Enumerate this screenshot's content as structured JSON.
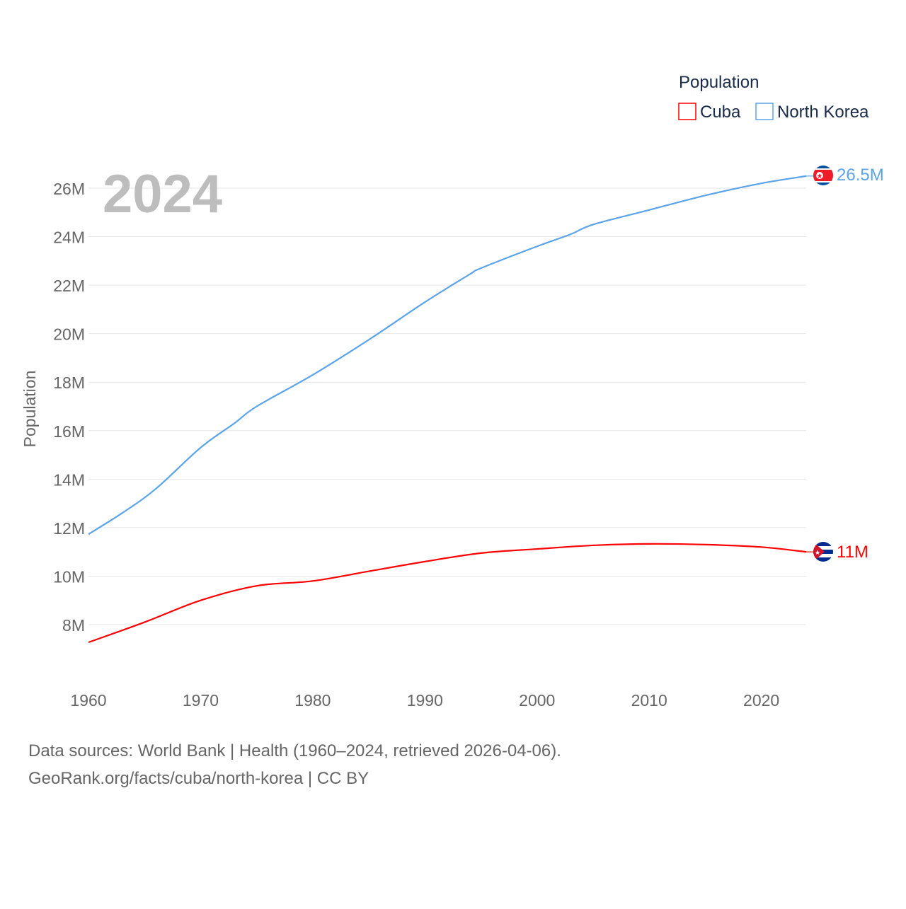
{
  "chart_data": {
    "type": "line",
    "year_label": "2024",
    "ylabel": "Population",
    "xlabel": "",
    "ylim": [
      6.5,
      27
    ],
    "xlim": [
      1960,
      2024
    ],
    "y_ticks": [
      8,
      10,
      12,
      14,
      16,
      18,
      20,
      22,
      24,
      26
    ],
    "y_tick_labels": [
      "8M",
      "10M",
      "12M",
      "14M",
      "16M",
      "18M",
      "20M",
      "22M",
      "24M",
      "26M"
    ],
    "x_ticks": [
      1960,
      1970,
      1980,
      1990,
      2000,
      2010,
      2020
    ],
    "x_tick_labels": [
      "1960",
      "1970",
      "1980",
      "1990",
      "2000",
      "2010",
      "2020"
    ],
    "grid": true,
    "legend": {
      "title": "Population",
      "placement": "top-right"
    },
    "series": [
      {
        "name": "Cuba",
        "color": "#ff0000",
        "end_label": "11M",
        "flag": "cuba-flag",
        "x": [
          1960,
          1965,
          1970,
          1975,
          1980,
          1985,
          1990,
          1995,
          2000,
          2005,
          2010,
          2015,
          2020,
          2024
        ],
        "values": [
          7.27,
          8.1,
          9.0,
          9.6,
          9.8,
          10.2,
          10.6,
          10.95,
          11.12,
          11.27,
          11.33,
          11.3,
          11.2,
          11.0
        ]
      },
      {
        "name": "North Korea",
        "color": "#5ba4ea",
        "end_label": "26.5M",
        "flag": "north-korea-flag",
        "x": [
          1960,
          1963,
          1966,
          1970,
          1973,
          1975,
          1980,
          1985,
          1990,
          1994,
          1995,
          2000,
          2003,
          2005,
          2010,
          2015,
          2020,
          2024
        ],
        "values": [
          11.73,
          12.6,
          13.6,
          15.3,
          16.3,
          17.0,
          18.3,
          19.75,
          21.3,
          22.45,
          22.7,
          23.6,
          24.1,
          24.5,
          25.1,
          25.7,
          26.2,
          26.5
        ]
      }
    ]
  },
  "footer": {
    "line1": "Data sources: World Bank | Health (1960–2024, retrieved 2026-04-06).",
    "line2": "GeoRank.org/facts/cuba/north-korea | CC BY"
  }
}
